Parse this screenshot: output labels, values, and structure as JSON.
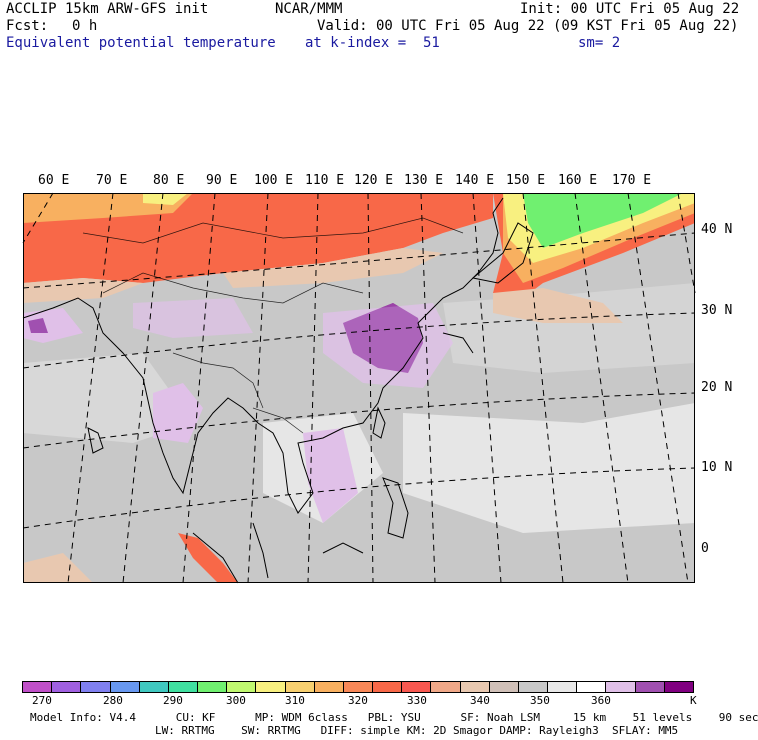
{
  "header": {
    "model": "ACCLIP 15km ARW-GFS init",
    "org": "NCAR/MMM",
    "init": "Init: 00 UTC Fri 05 Aug 22",
    "fcst_label": "Fcst:",
    "fcst_value": "0 h",
    "valid": "Valid: 00 UTC Fri 05 Aug 22 (09 KST Fri 05 Aug 22)",
    "field": "Equivalent potential temperature",
    "level": "at k-index =  51",
    "smoothing": "sm= 2"
  },
  "map": {
    "lon_labels": [
      "60 E",
      "70 E",
      "80 E",
      "90 E",
      "100 E",
      "110 E",
      "120 E",
      "130 E",
      "140 E",
      "150 E",
      "160 E",
      "170 E"
    ],
    "lat_labels": [
      "40 N",
      "30 N",
      "20 N",
      "10 N",
      "0"
    ]
  },
  "colorbar": {
    "unit": "K",
    "ticks": [
      "270",
      "280",
      "290",
      "300",
      "310",
      "320",
      "330",
      "340",
      "350",
      "360"
    ],
    "colors": [
      "#c050c8",
      "#a060e0",
      "#8080f0",
      "#6898f0",
      "#40c8c0",
      "#40e0a0",
      "#70f070",
      "#c0f870",
      "#f8f080",
      "#f8d070",
      "#f8b060",
      "#f88858",
      "#f86848",
      "#f85850",
      "#f0a888",
      "#e8c8b0",
      "#d0c0b8",
      "#c8c8c8",
      "#e8e8e8",
      "#ffffff",
      "#e0c0e8",
      "#a050b0",
      "#800080"
    ]
  },
  "footer": {
    "line1": "Model Info: V4.4      CU: KF      MP: WDM 6class   PBL: YSU      SF: Noah LSM     15 km    51 levels    90 sec",
    "line2": "LW: RRTMG    SW: RRTMG   DIFF: simple KM: 2D Smagor DAMP: Rayleigh3  SFLAY: MM5"
  },
  "colors": {
    "header_blue": "#1a1aa0"
  }
}
